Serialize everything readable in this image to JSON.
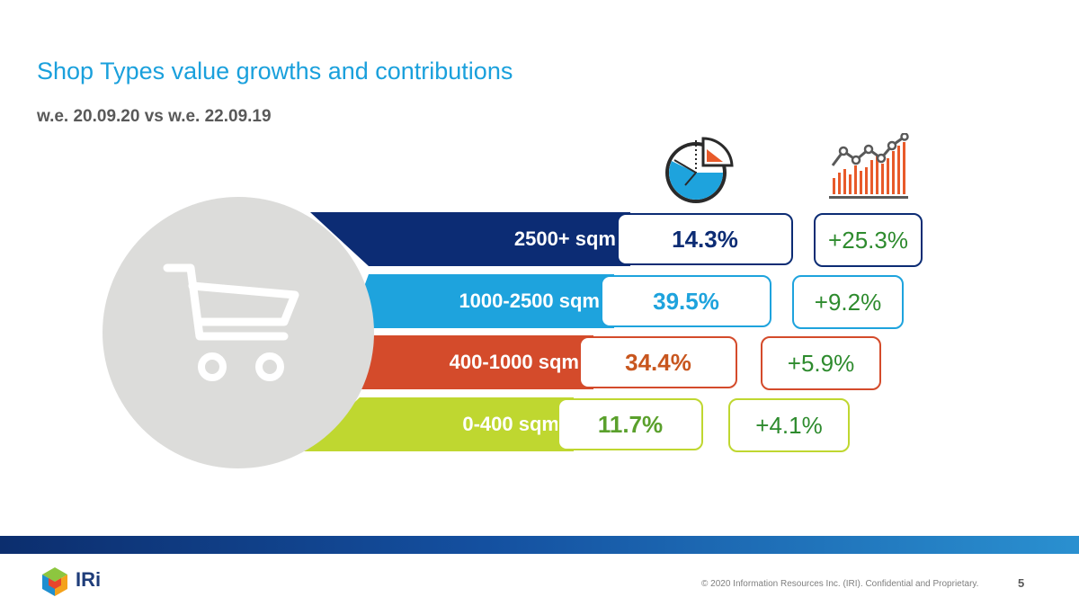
{
  "header": {
    "title": "Shop Types value growths and contributions",
    "subtitle": "w.e. 20.09.20 vs w.e. 22.09.19"
  },
  "column_icons": {
    "contribution_icon": "pie-chart-icon",
    "growth_icon": "bar-line-growth-icon"
  },
  "center_icon": "shopping-cart-icon",
  "rows": [
    {
      "label": "2500+ sqm",
      "share": "14.3%",
      "growth": "+25.3%",
      "color": "#0c2c74",
      "value_color": "#0c2c74"
    },
    {
      "label": "1000-2500 sqm",
      "share": "39.5%",
      "growth": "+9.2%",
      "color": "#1ea3dd",
      "value_color": "#1ea3dd"
    },
    {
      "label": "400-1000 sqm",
      "share": "34.4%",
      "growth": "+5.9%",
      "color": "#d44b2b",
      "value_color": "#c8561e"
    },
    {
      "label": "0-400 sqm",
      "share": "11.7%",
      "growth": "+4.1%",
      "color": "#bfd730",
      "value_color": "#5aa02c"
    }
  ],
  "colors": {
    "title": "#1aa0dc",
    "growth_text": "#2e8b2e",
    "footer_bar": "#1450a0"
  },
  "footer": {
    "brand": "IRi",
    "copyright": "© 2020 Information Resources Inc. (IRI). Confidential and Proprietary.",
    "page_number": "5"
  }
}
